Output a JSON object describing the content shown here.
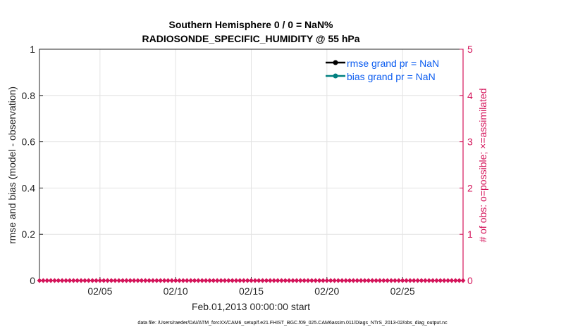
{
  "chart_data": {
    "type": "line",
    "title": [
      "Southern Hemisphere 0 / 0 = NaN%",
      "RADIOSONDE_SPECIFIC_HUMIDITY @ 55 hPa"
    ],
    "xlabel": "Feb.01,2013 00:00:00 start",
    "ylabel": "rmse and bias (model - observation)",
    "y2label": "# of obs: o=possible; ×=assimilated",
    "xlim": [
      "2013-02-01",
      "2013-03-01"
    ],
    "xticks": [
      {
        "date": "2013-02-05",
        "label": "02/05"
      },
      {
        "date": "2013-02-10",
        "label": "02/10"
      },
      {
        "date": "2013-02-15",
        "label": "02/15"
      },
      {
        "date": "2013-02-20",
        "label": "02/20"
      },
      {
        "date": "2013-02-25",
        "label": "02/25"
      }
    ],
    "ylim": [
      0,
      1
    ],
    "yticks": [
      "0",
      "0.2",
      "0.4",
      "0.6",
      "0.8",
      "1"
    ],
    "y2lim": [
      0,
      5
    ],
    "y2ticks": [
      "0",
      "1",
      "2",
      "3",
      "4",
      "5"
    ],
    "grid": true,
    "legend_position": "top-right",
    "series": [
      {
        "name": "rmse grand pr = NaN",
        "color": "#000000",
        "values": []
      },
      {
        "name": "bias grand pr = NaN",
        "color": "#008080",
        "values": []
      },
      {
        "name": "obs count",
        "axis": "right",
        "color": "#D4145A",
        "interval_hours": 6,
        "start": "2013-02-01T00:00",
        "end": "2013-03-01T00:00",
        "value": 0
      }
    ],
    "footnote": "data file: /Users/raeder/DAI/ATM_forcXX/CAM6_setup/f.e21.FHIST_BGC.f09_025.CAM6assim.011/Diags_NTrS_2013-02/obs_diag_output.nc"
  }
}
